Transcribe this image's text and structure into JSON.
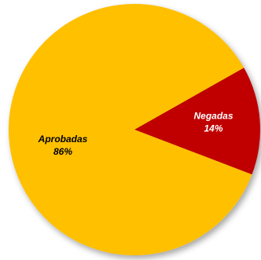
{
  "chart_data": {
    "type": "pie",
    "title": "",
    "slices": [
      {
        "name": "Negadas",
        "value": 14,
        "percent_label": "14%",
        "color": "#c00000",
        "label_color": "#ffffff"
      },
      {
        "name": "Aprobadas",
        "value": 86,
        "percent_label": "86%",
        "color": "#ffc000",
        "label_color": "#000000"
      }
    ],
    "start_angle_deg": 29.5,
    "legend": "none",
    "data_labels": "inside"
  }
}
